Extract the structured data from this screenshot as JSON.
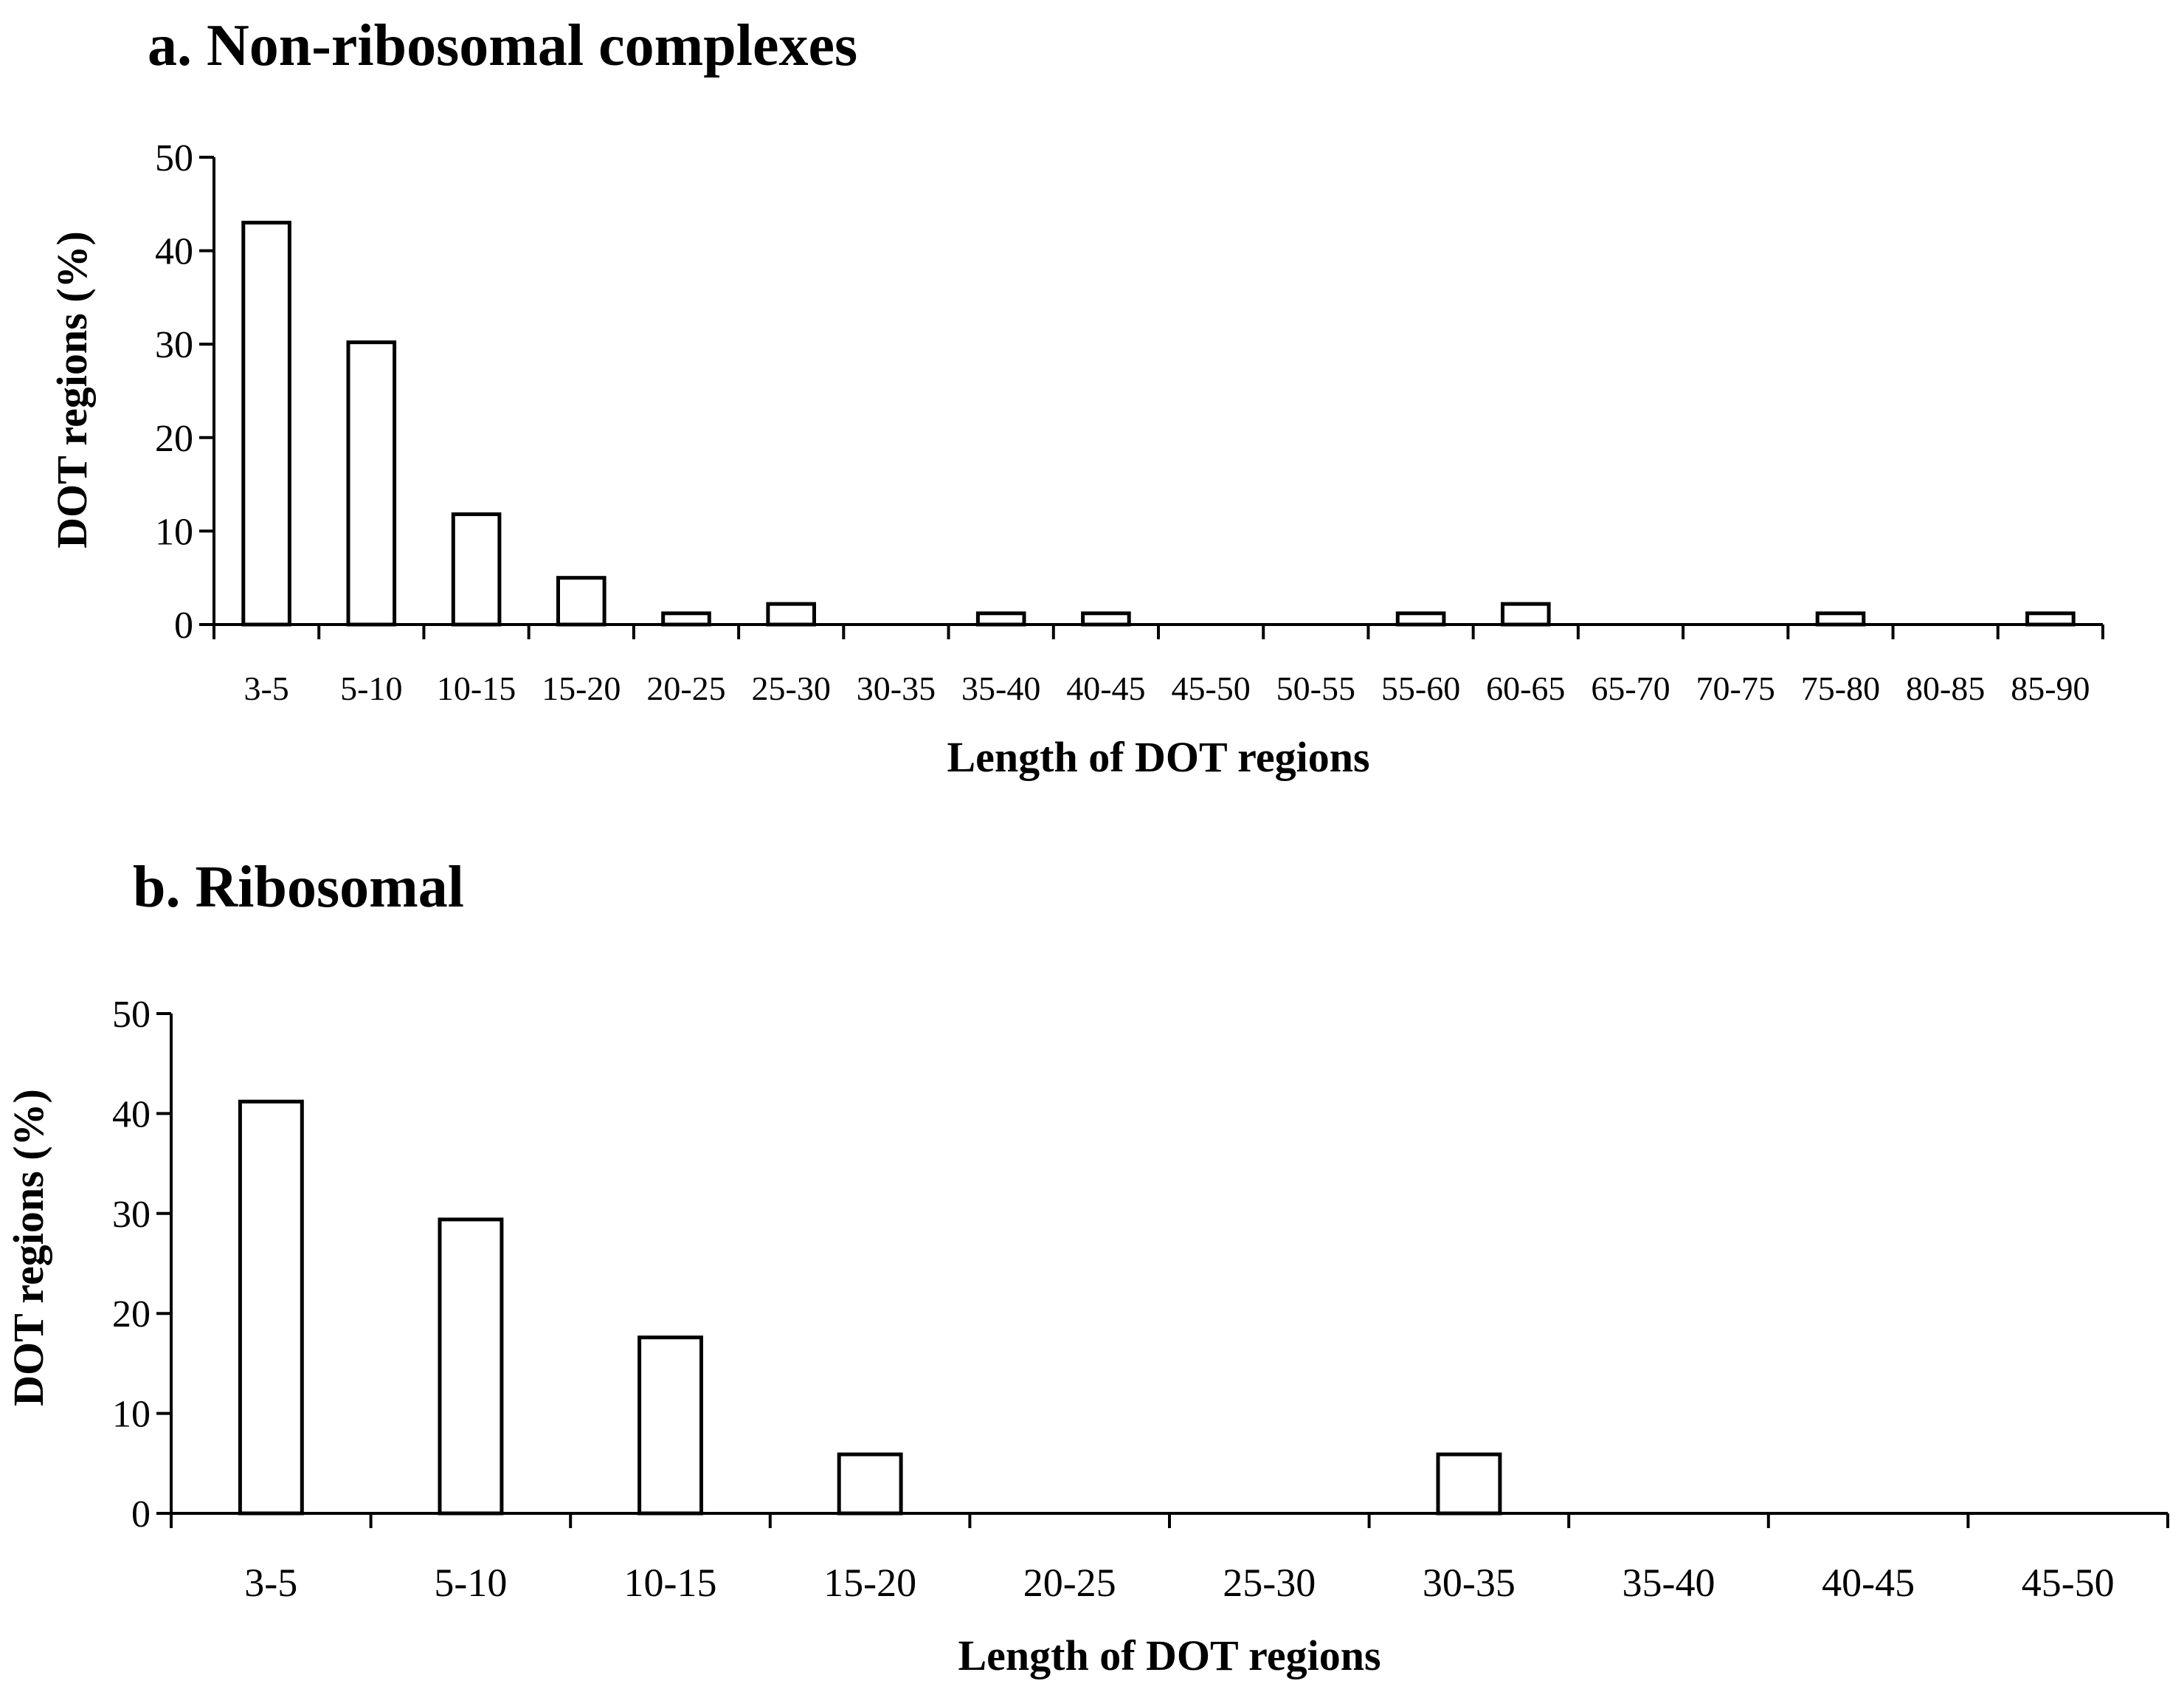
{
  "chart_data": [
    {
      "type": "bar",
      "title": "a. Non-ribosomal complexes",
      "xlabel": "Length of DOT regions",
      "ylabel": "DOT regions (%)",
      "ylim": [
        0,
        50
      ],
      "yticks": [
        0,
        10,
        20,
        30,
        40,
        50
      ],
      "grid": false,
      "legend": null,
      "categories": [
        "3-5",
        "5-10",
        "10-15",
        "15-20",
        "20-25",
        "25-30",
        "30-35",
        "35-40",
        "40-45",
        "45-50",
        "50-55",
        "55-60",
        "60-65",
        "65-70",
        "70-75",
        "75-80",
        "80-85",
        "85-90"
      ],
      "values": [
        43,
        30.2,
        11.8,
        5,
        1.2,
        2.2,
        0,
        1.2,
        1.2,
        0,
        0,
        1.2,
        2.2,
        0,
        0,
        1.2,
        0,
        1.2
      ],
      "colors": {
        "bar_fill": "#ffffff",
        "bar_stroke": "#000000",
        "axis": "#000000"
      }
    },
    {
      "type": "bar",
      "title": "b. Ribosomal",
      "xlabel": "Length of DOT regions",
      "ylabel": "DOT regions (%)",
      "ylim": [
        0,
        50
      ],
      "yticks": [
        0,
        10,
        20,
        30,
        40,
        50
      ],
      "grid": false,
      "legend": null,
      "categories": [
        "3-5",
        "5-10",
        "10-15",
        "15-20",
        "20-25",
        "25-30",
        "30-35",
        "35-40",
        "40-45",
        "45-50"
      ],
      "values": [
        41.2,
        29.4,
        17.6,
        5.9,
        0,
        0,
        5.9,
        0,
        0,
        0
      ],
      "colors": {
        "bar_fill": "#ffffff",
        "bar_stroke": "#000000",
        "axis": "#000000"
      }
    }
  ]
}
